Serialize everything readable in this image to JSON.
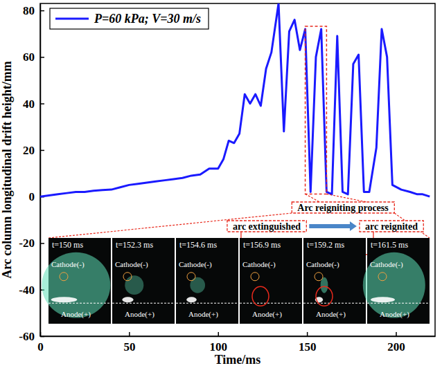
{
  "chart_data": {
    "type": "line",
    "x_label": "Time/ms",
    "y_label": "Arc column longitudinal drift height/mm",
    "x": [
      0,
      5,
      10,
      15,
      20,
      25,
      30,
      35,
      40,
      45,
      50,
      55,
      60,
      65,
      70,
      75,
      80,
      85,
      90,
      95,
      100,
      103,
      106,
      109,
      112,
      115,
      118,
      121,
      124,
      127,
      130,
      134,
      137,
      140,
      143,
      146,
      149,
      152,
      155,
      158,
      161,
      164,
      167,
      170,
      173,
      176,
      179,
      182,
      185,
      189,
      192,
      195,
      198,
      203,
      208,
      212,
      215,
      219
    ],
    "series": [
      {
        "name": "P=60 kPa; V=30 m/s",
        "color": "#1a1aff",
        "values": [
          0,
          0.5,
          1,
          1.5,
          2,
          2,
          2.5,
          2.8,
          3,
          4,
          5,
          5.5,
          6,
          6.5,
          7,
          7.5,
          8,
          9,
          9.5,
          12,
          12,
          16,
          24,
          23,
          27,
          44,
          40,
          44,
          39,
          55,
          62,
          83,
          28,
          71,
          76,
          63,
          72,
          2,
          60,
          72,
          2,
          1,
          69,
          2,
          1,
          57,
          61,
          2,
          2,
          21,
          72,
          60,
          5,
          3,
          2,
          1,
          1,
          0
        ]
      }
    ],
    "xlim": [
      0,
      222
    ],
    "ylim": [
      -60,
      83
    ],
    "xticks": [
      0,
      50,
      100,
      150,
      200
    ],
    "yticks": [
      -60,
      -40,
      -20,
      0,
      20,
      40,
      60,
      80
    ],
    "legend": "upper left",
    "annotations": [
      {
        "text": "Arc reigniting process",
        "x_range": [
          149,
          161
        ]
      },
      {
        "text": "arc extinguished"
      },
      {
        "text": "arc reignited"
      }
    ],
    "insets": [
      {
        "label": "t=150 ms",
        "cathode": "Cathode(-)",
        "anode": "Anode(+)"
      },
      {
        "label": "t=152.3 ms",
        "cathode": "Cathode(-)",
        "anode": "Anode(+)"
      },
      {
        "label": "t=154.6 ms",
        "cathode": "Cathode(-)",
        "anode": "Anode(+)"
      },
      {
        "label": "t=156.9 ms",
        "cathode": "Cathode(-)",
        "anode": "Anode(+)"
      },
      {
        "label": "t=159.2 ms",
        "cathode": "Cathode(-)",
        "anode": "Anode(+)"
      },
      {
        "label": "t=161.5 ms",
        "cathode": "Cathode(-)",
        "anode": "Anode(+)"
      }
    ]
  }
}
